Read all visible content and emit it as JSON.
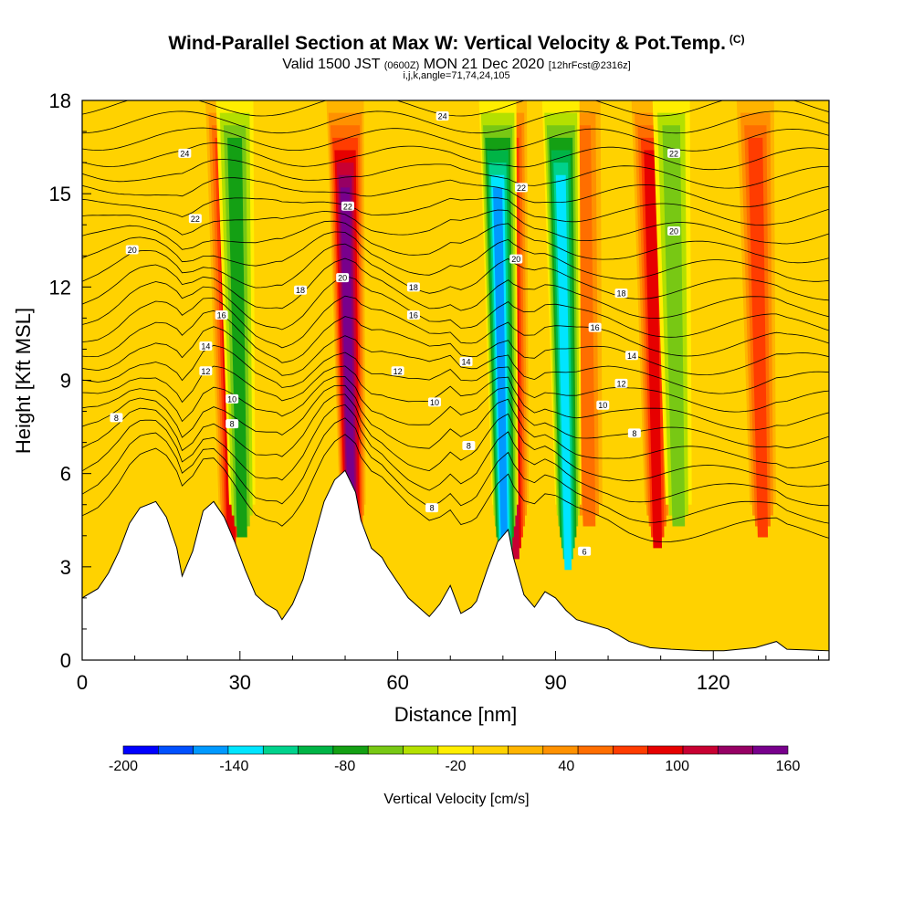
{
  "chart_data": {
    "type": "heatmap",
    "title": "Wind-Parallel Section at Max W: Vertical Velocity & Pot.Temp.",
    "title_tag": "(C)",
    "subtitle_main": "Valid 1500 JST",
    "subtitle_z": "(0600Z)",
    "subtitle_date": "MON 21 Dec 2020",
    "subtitle_fcst": "[12hrFcst@2316z]",
    "subtitle2": "i,j,k,angle=71,74,24,105",
    "xlabel": "Distance [nm]",
    "ylabel": "Height [Kft MSL]",
    "xlim": [
      0,
      142
    ],
    "ylim": [
      0,
      18
    ],
    "x_ticks": [
      0,
      30,
      60,
      90,
      120
    ],
    "y_ticks": [
      0,
      3,
      6,
      9,
      12,
      15,
      18
    ],
    "colorbar": {
      "label": "Vertical Velocity [cm/s]",
      "min": -200,
      "max": 160,
      "step": 20,
      "tick_labels": [
        "-200",
        "-140",
        "-80",
        "-20",
        "40",
        "100",
        "160"
      ],
      "colors": [
        "#0000ff",
        "#0050ff",
        "#0099ff",
        "#00e5ff",
        "#00d28c",
        "#00b446",
        "#14a014",
        "#78c814",
        "#b4e000",
        "#ffee00",
        "#ffd200",
        "#ffb400",
        "#ff9100",
        "#ff6e00",
        "#ff3c00",
        "#e60000",
        "#c80032",
        "#960064",
        "#78008c"
      ]
    },
    "background_value_cm_s": 0,
    "updrafts": [
      {
        "x": 27,
        "peak_cm_s": 100
      },
      {
        "x": 50,
        "peak_cm_s": 160
      },
      {
        "x": 81,
        "peak_cm_s": 120
      },
      {
        "x": 95,
        "peak_cm_s": 60
      },
      {
        "x": 108,
        "peak_cm_s": 100
      },
      {
        "x": 128,
        "peak_cm_s": 80
      }
    ],
    "downdrafts": [
      {
        "x": 29,
        "peak_cm_s": -80
      },
      {
        "x": 79,
        "peak_cm_s": -160
      },
      {
        "x": 91,
        "peak_cm_s": -140
      },
      {
        "x": 112,
        "peak_cm_s": -60
      }
    ],
    "terrain_kft": [
      [
        0,
        2.0
      ],
      [
        3,
        2.3
      ],
      [
        5,
        2.8
      ],
      [
        7,
        3.5
      ],
      [
        9,
        4.4
      ],
      [
        11,
        4.9
      ],
      [
        14,
        5.1
      ],
      [
        16,
        4.6
      ],
      [
        18,
        3.6
      ],
      [
        19,
        2.7
      ],
      [
        21,
        3.5
      ],
      [
        23,
        4.8
      ],
      [
        25,
        5.1
      ],
      [
        27,
        4.6
      ],
      [
        29,
        3.8
      ],
      [
        31,
        2.9
      ],
      [
        33,
        2.1
      ],
      [
        35,
        1.8
      ],
      [
        37,
        1.6
      ],
      [
        38,
        1.3
      ],
      [
        40,
        1.8
      ],
      [
        42,
        2.6
      ],
      [
        44,
        3.9
      ],
      [
        46,
        5.1
      ],
      [
        48,
        5.8
      ],
      [
        50,
        6.1
      ],
      [
        52,
        5.4
      ],
      [
        53,
        4.5
      ],
      [
        55,
        3.6
      ],
      [
        57,
        3.3
      ],
      [
        58,
        3.0
      ],
      [
        60,
        2.5
      ],
      [
        62,
        2.0
      ],
      [
        64,
        1.7
      ],
      [
        66,
        1.4
      ],
      [
        68,
        1.8
      ],
      [
        70,
        2.4
      ],
      [
        72,
        1.5
      ],
      [
        74,
        1.7
      ],
      [
        75,
        1.9
      ],
      [
        77,
        2.9
      ],
      [
        79,
        3.8
      ],
      [
        81,
        4.2
      ],
      [
        82,
        3.3
      ],
      [
        84,
        2.1
      ],
      [
        86,
        1.7
      ],
      [
        88,
        2.2
      ],
      [
        90,
        2.0
      ],
      [
        92,
        1.6
      ],
      [
        94,
        1.3
      ],
      [
        96,
        1.2
      ],
      [
        100,
        1.0
      ],
      [
        104,
        0.6
      ],
      [
        108,
        0.4
      ],
      [
        112,
        0.35
      ],
      [
        118,
        0.3
      ],
      [
        122,
        0.3
      ],
      [
        128,
        0.4
      ],
      [
        132,
        0.6
      ],
      [
        134,
        0.35
      ],
      [
        142,
        0.3
      ]
    ],
    "theta_contour_labels": [
      {
        "text": "24",
        "x": 19.5,
        "y": 16.3
      },
      {
        "text": "22",
        "x": 21.5,
        "y": 14.2
      },
      {
        "text": "20",
        "x": 9.5,
        "y": 13.2
      },
      {
        "text": "16",
        "x": 26.5,
        "y": 11.1
      },
      {
        "text": "14",
        "x": 23.5,
        "y": 10.1
      },
      {
        "text": "12",
        "x": 23.5,
        "y": 9.3
      },
      {
        "text": "10",
        "x": 28.5,
        "y": 8.4
      },
      {
        "text": "8",
        "x": 6.5,
        "y": 7.8
      },
      {
        "text": "8",
        "x": 28.5,
        "y": 7.6
      },
      {
        "text": "22",
        "x": 50.5,
        "y": 14.6
      },
      {
        "text": "20",
        "x": 49.5,
        "y": 12.3
      },
      {
        "text": "18",
        "x": 41.5,
        "y": 11.9
      },
      {
        "text": "18",
        "x": 63.0,
        "y": 12.0
      },
      {
        "text": "16",
        "x": 63.0,
        "y": 11.1
      },
      {
        "text": "12",
        "x": 60.0,
        "y": 9.3
      },
      {
        "text": "10",
        "x": 67.0,
        "y": 8.3
      },
      {
        "text": "14",
        "x": 73.0,
        "y": 9.6
      },
      {
        "text": "8",
        "x": 73.5,
        "y": 6.9
      },
      {
        "text": "8",
        "x": 66.5,
        "y": 4.9
      },
      {
        "text": "24",
        "x": 68.5,
        "y": 17.5
      },
      {
        "text": "22",
        "x": 83.5,
        "y": 15.2
      },
      {
        "text": "20",
        "x": 82.5,
        "y": 12.9
      },
      {
        "text": "18",
        "x": 102.5,
        "y": 11.8
      },
      {
        "text": "16",
        "x": 97.5,
        "y": 10.7
      },
      {
        "text": "14",
        "x": 104.5,
        "y": 9.8
      },
      {
        "text": "12",
        "x": 102.5,
        "y": 8.9
      },
      {
        "text": "10",
        "x": 99.0,
        "y": 8.2
      },
      {
        "text": "8",
        "x": 105.0,
        "y": 7.3
      },
      {
        "text": "6",
        "x": 95.5,
        "y": 3.5
      },
      {
        "text": "22",
        "x": 112.5,
        "y": 16.3
      },
      {
        "text": "20",
        "x": 112.5,
        "y": 13.8
      }
    ]
  }
}
